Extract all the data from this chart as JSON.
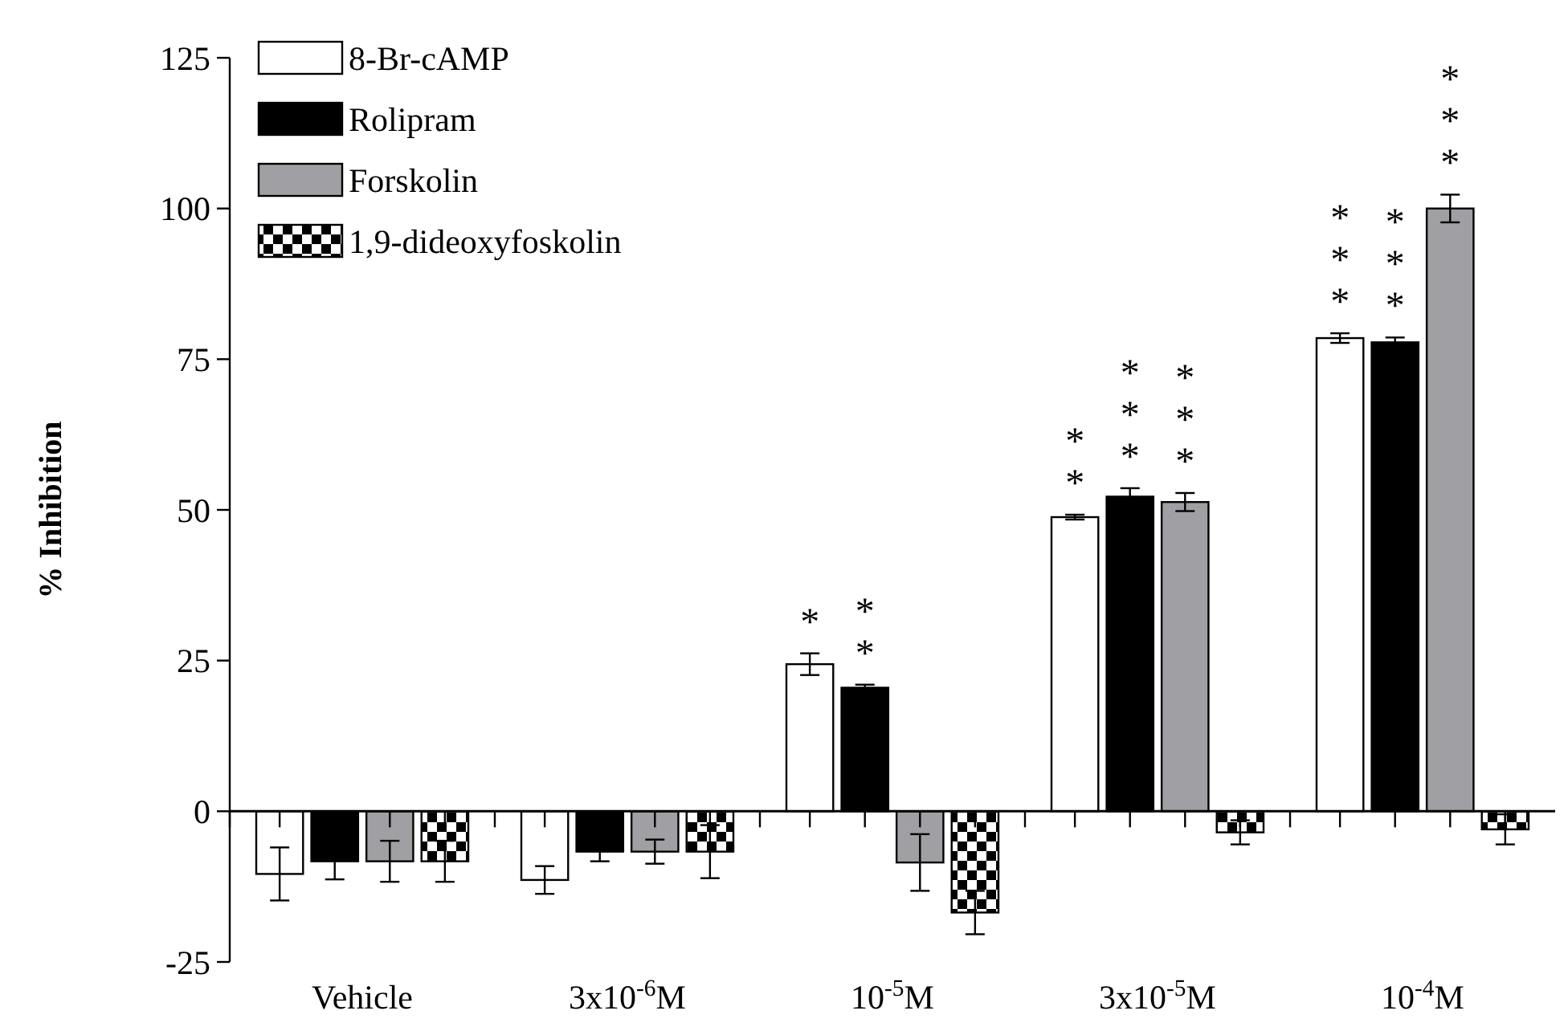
{
  "chart_data": {
    "type": "bar",
    "ylabel": "% Inhibition",
    "categories": [
      "Vehicle",
      "3x10$^{-6}$M",
      "10$^{-5}$M",
      "3x10$^{-5}$M",
      "10$^{-4}$M"
    ],
    "series": [
      {
        "name": "8-Br-cAMP",
        "color": "#ffffff",
        "values": [
          -10.4,
          -11.4,
          24.4,
          48.8,
          78.5
        ],
        "errors": [
          4.4,
          2.3,
          1.8,
          0.4,
          0.8
        ],
        "value_labels": [
          null,
          null,
          "*",
          "**",
          "***"
        ]
      },
      {
        "name": "Rolipram",
        "color": "#000000",
        "values": [
          -8.3,
          -6.7,
          20.5,
          52.2,
          77.8
        ],
        "errors": [
          3,
          1.6,
          0.5,
          1.4,
          0.8
        ],
        "value_labels": [
          null,
          null,
          "**",
          "***",
          "***"
        ]
      },
      {
        "name": "Forskolin",
        "color": "#a0a0a4",
        "values": [
          -8.3,
          -6.7,
          -8.5,
          51.3,
          100
        ],
        "errors": [
          3.4,
          2,
          4.7,
          1.5,
          2.3
        ],
        "value_labels": [
          null,
          null,
          null,
          "***",
          "***"
        ]
      },
      {
        "name": "1,9-dideoxyfoskolin",
        "color": "#000000",
        "values": [
          -8.3,
          -6.7,
          -16.8,
          -3.5,
          -3
        ],
        "errors": [
          3.4,
          4.4,
          3.6,
          2,
          2.5
        ]
      }
    ],
    "ylim": [
      -25,
      125
    ],
    "yticks": [
      -25,
      0,
      25,
      50,
      75,
      100,
      125
    ],
    "legend": "top left"
  }
}
